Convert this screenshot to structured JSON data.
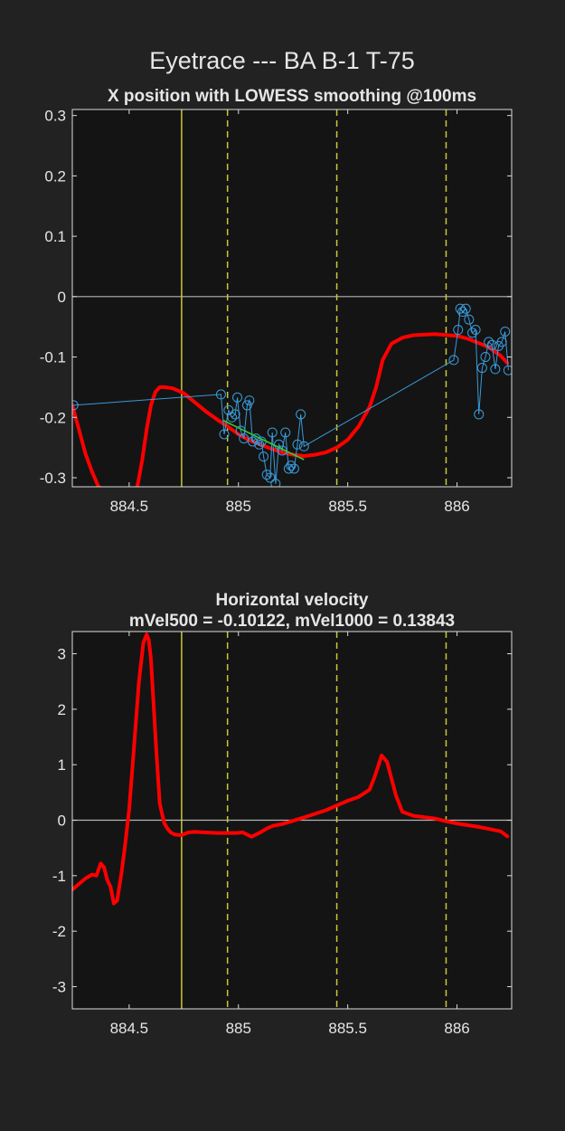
{
  "figure": {
    "suptitle": "Eyetrace --- BA B-1 T-75",
    "colors": {
      "background": "#222222",
      "axes_background": "#141414",
      "text": "#e6e6e6",
      "smooth_line": "#ff0000",
      "raw_points": "#3a9ad9",
      "fit_line": "#33cc33",
      "event_line": "#c8c83c",
      "zero_line": "#b4b4b4"
    }
  },
  "chart_data": [
    {
      "type": "line",
      "title": "X position with LOWESS smoothing @100ms",
      "xlabel": "",
      "ylabel": "",
      "xlim": [
        884.24,
        886.25
      ],
      "ylim": [
        -0.315,
        0.31
      ],
      "xticks": [
        884.5,
        885,
        885.5,
        886
      ],
      "xtick_labels": [
        "884.5",
        "885",
        "885.5",
        "886"
      ],
      "yticks": [
        -0.3,
        -0.2,
        -0.1,
        0,
        0.1,
        0.2,
        0.3
      ],
      "ytick_labels": [
        "-0.3",
        "-0.2",
        "-0.1",
        "0",
        "0.1",
        "0.2",
        "0.3"
      ],
      "grid": false,
      "zero_line": 0,
      "event_lines": [
        {
          "x": 884.74,
          "style": "solid"
        },
        {
          "x": 884.95,
          "style": "dashed"
        },
        {
          "x": 885.45,
          "style": "dashed"
        },
        {
          "x": 885.95,
          "style": "dashed"
        }
      ],
      "series": [
        {
          "kind": "smoothed",
          "x": [
            884.24,
            884.27,
            884.3,
            884.33,
            884.36,
            884.44,
            884.525,
            884.54,
            884.56,
            884.58,
            884.6,
            884.62,
            884.64,
            884.66,
            884.7,
            884.75,
            884.8,
            884.85,
            884.9,
            884.95,
            885.0,
            885.05,
            885.1,
            885.15,
            885.2,
            885.25,
            885.3,
            885.35,
            885.4,
            885.45,
            885.5,
            885.55,
            885.6,
            885.63,
            885.66,
            885.7,
            885.75,
            885.8,
            885.9,
            886.0,
            886.05,
            886.1,
            886.15,
            886.2,
            886.23
          ],
          "y": [
            -0.18,
            -0.22,
            -0.26,
            -0.29,
            -0.315,
            -0.33,
            -0.33,
            -0.31,
            -0.27,
            -0.22,
            -0.18,
            -0.158,
            -0.15,
            -0.15,
            -0.152,
            -0.16,
            -0.175,
            -0.19,
            -0.203,
            -0.215,
            -0.228,
            -0.238,
            -0.245,
            -0.252,
            -0.258,
            -0.262,
            -0.264,
            -0.262,
            -0.258,
            -0.25,
            -0.237,
            -0.215,
            -0.183,
            -0.15,
            -0.105,
            -0.078,
            -0.068,
            -0.064,
            -0.062,
            -0.065,
            -0.07,
            -0.077,
            -0.085,
            -0.098,
            -0.11
          ]
        },
        {
          "kind": "raw",
          "x": [
            884.245,
            884.92,
            884.935,
            884.955,
            884.97,
            884.985,
            884.995,
            885.01,
            885.025,
            885.04,
            885.05,
            885.065,
            885.08,
            885.095,
            885.105,
            885.115,
            885.13,
            885.145,
            885.155,
            885.17,
            885.185,
            885.2,
            885.215,
            885.23,
            885.24,
            885.255,
            885.27,
            885.285,
            885.3,
            885.985,
            886.005,
            886.015,
            886.025,
            886.04,
            886.055,
            886.07,
            886.085,
            886.1,
            886.115,
            886.13,
            886.145,
            886.16,
            886.175,
            886.19,
            886.205,
            886.22,
            886.235
          ],
          "y": [
            -0.18,
            -0.162,
            -0.228,
            -0.188,
            -0.2,
            -0.195,
            -0.167,
            -0.222,
            -0.235,
            -0.18,
            -0.172,
            -0.24,
            -0.235,
            -0.245,
            -0.24,
            -0.265,
            -0.295,
            -0.3,
            -0.225,
            -0.31,
            -0.245,
            -0.255,
            -0.225,
            -0.285,
            -0.28,
            -0.285,
            -0.245,
            -0.195,
            -0.248,
            -0.105,
            -0.055,
            -0.02,
            -0.025,
            -0.02,
            -0.038,
            -0.06,
            -0.055,
            -0.195,
            -0.118,
            -0.1,
            -0.075,
            -0.08,
            -0.12,
            -0.082,
            -0.075,
            -0.058,
            -0.122
          ]
        },
        {
          "kind": "fit",
          "x": [
            884.93,
            885.3
          ],
          "y": [
            -0.205,
            -0.27
          ]
        }
      ]
    },
    {
      "type": "line",
      "title": "Horizontal velocity",
      "subtitle": "mVel500 = -0.10122, mVel1000 = 0.13843",
      "xlabel": "",
      "ylabel": "",
      "xlim": [
        884.24,
        886.25
      ],
      "ylim": [
        -3.4,
        3.4
      ],
      "xticks": [
        884.5,
        885,
        885.5,
        886
      ],
      "xtick_labels": [
        "884.5",
        "885",
        "885.5",
        "886"
      ],
      "yticks": [
        -3,
        -2,
        -1,
        0,
        1,
        2,
        3
      ],
      "ytick_labels": [
        "-3",
        "-2",
        "-1",
        "0",
        "1",
        "2",
        "3"
      ],
      "grid": false,
      "zero_line": 0,
      "event_lines": [
        {
          "x": 884.74,
          "style": "solid"
        },
        {
          "x": 884.95,
          "style": "dashed"
        },
        {
          "x": 885.45,
          "style": "dashed"
        },
        {
          "x": 885.95,
          "style": "dashed"
        }
      ],
      "series": [
        {
          "kind": "velocity",
          "x": [
            884.24,
            884.27,
            884.3,
            884.33,
            884.35,
            884.37,
            884.385,
            884.4,
            884.415,
            884.43,
            884.445,
            884.455,
            884.465,
            884.48,
            884.5,
            884.52,
            884.545,
            884.565,
            884.58,
            884.59,
            884.6,
            884.61,
            884.625,
            884.64,
            884.66,
            884.675,
            884.69,
            884.71,
            884.74,
            884.77,
            884.8,
            884.85,
            884.9,
            884.95,
            884.99,
            885.02,
            885.04,
            885.06,
            885.08,
            885.1,
            885.13,
            885.16,
            885.2,
            885.3,
            885.4,
            885.5,
            885.55,
            885.6,
            885.62,
            885.64,
            885.655,
            885.68,
            885.72,
            885.75,
            885.8,
            885.9,
            885.95,
            886.0,
            886.1,
            886.2,
            886.23
          ],
          "y": [
            -1.25,
            -1.15,
            -1.05,
            -0.98,
            -1.0,
            -0.78,
            -0.85,
            -1.08,
            -1.2,
            -1.5,
            -1.45,
            -1.2,
            -0.95,
            -0.5,
            0.2,
            1.2,
            2.5,
            3.2,
            3.35,
            3.25,
            2.9,
            2.2,
            1.2,
            0.3,
            -0.05,
            -0.15,
            -0.22,
            -0.26,
            -0.27,
            -0.22,
            -0.21,
            -0.22,
            -0.23,
            -0.23,
            -0.23,
            -0.22,
            -0.26,
            -0.3,
            -0.26,
            -0.22,
            -0.15,
            -0.1,
            -0.07,
            0.05,
            0.18,
            0.35,
            0.42,
            0.55,
            0.75,
            0.98,
            1.17,
            1.05,
            0.45,
            0.15,
            0.08,
            0.03,
            -0.02,
            -0.06,
            -0.12,
            -0.2,
            -0.29
          ]
        }
      ]
    }
  ]
}
